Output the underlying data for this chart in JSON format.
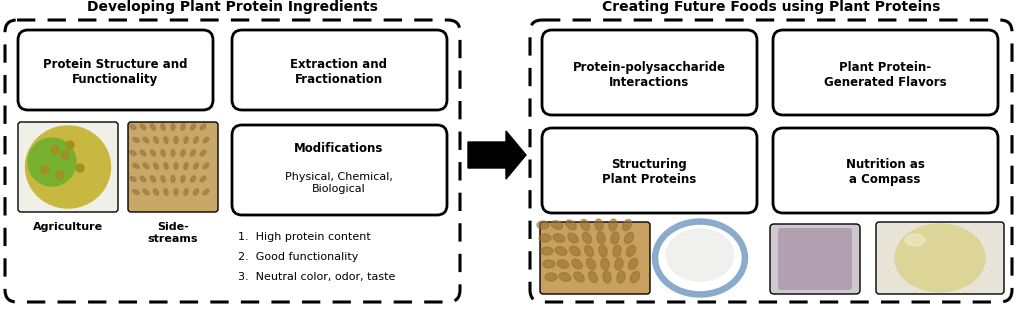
{
  "title_left": "Developing Plant Protein Ingredients",
  "title_right": "Creating Future Foods using Plant Proteins",
  "bg_color": "#ffffff",
  "left_box1_text_bold": "Protein Structure and\nFunctionality",
  "left_box2_text_bold": "Extraction and\nFractionation",
  "left_box3_text_bold": "Modifications",
  "left_box3_text_normal": "Physical, Chemical,\nBiological",
  "right_box1_text": "Protein-polysaccharide\nInteractions",
  "right_box2_text": "Plant Protein-\nGenerated Flavors",
  "right_box3_text": "Structuring\nPlant Proteins",
  "right_box4_text": "Nutrition as\na Compass",
  "label_agri": "Agriculture",
  "label_side": "Side-\nstreams",
  "list1": "1.  High protein content",
  "list2": "2.  Good functionality",
  "list3": "3.  Neutral color, odor, taste"
}
